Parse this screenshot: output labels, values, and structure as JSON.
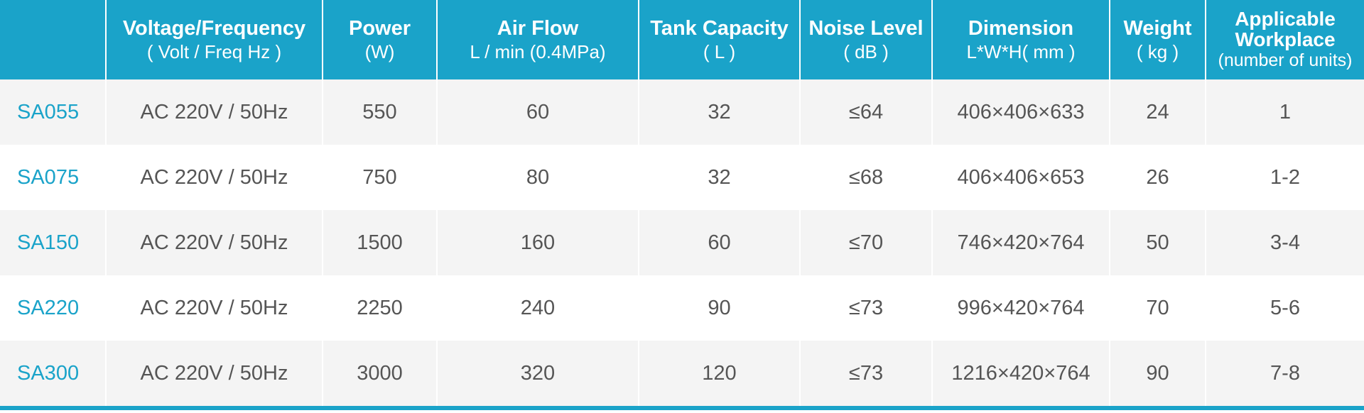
{
  "table": {
    "headers": [
      {
        "main": "",
        "sub": ""
      },
      {
        "main": "Voltage/Frequency",
        "sub": "( Volt / Freq Hz )"
      },
      {
        "main": "Power",
        "sub": "(W)"
      },
      {
        "main": "Air Flow",
        "sub": "L / min (0.4MPa)"
      },
      {
        "main": "Tank Capacity",
        "sub": "( L )"
      },
      {
        "main": "Noise Level",
        "sub": "( dB )"
      },
      {
        "main": "Dimension",
        "sub": "L*W*H( mm )"
      },
      {
        "main": "Weight",
        "sub": "( kg )"
      },
      {
        "main": "Applicable Workplace",
        "sub": "(number of units)"
      }
    ],
    "rows": [
      [
        "SA055",
        "AC 220V / 50Hz",
        "550",
        "60",
        "32",
        "≤64",
        "406×406×633",
        "24",
        "1"
      ],
      [
        "SA075",
        "AC 220V / 50Hz",
        "750",
        "80",
        "32",
        "≤68",
        "406×406×653",
        "26",
        "1-2"
      ],
      [
        "SA150",
        "AC 220V / 50Hz",
        "1500",
        "160",
        "60",
        "≤70",
        "746×420×764",
        "50",
        "3-4"
      ],
      [
        "SA220",
        "AC 220V / 50Hz",
        "2250",
        "240",
        "90",
        "≤73",
        "996×420×764",
        "70",
        "5-6"
      ],
      [
        "SA300",
        "AC 220V / 50Hz",
        "3000",
        "320",
        "120",
        "≤73",
        "1216×420×764",
        "90",
        "7-8"
      ]
    ]
  },
  "colors": {
    "header_bg": "#1aa3c9",
    "header_text": "#ffffff",
    "model_text": "#1aa3c9",
    "cell_text": "#555555",
    "row_stripe": "#f4f4f4"
  }
}
